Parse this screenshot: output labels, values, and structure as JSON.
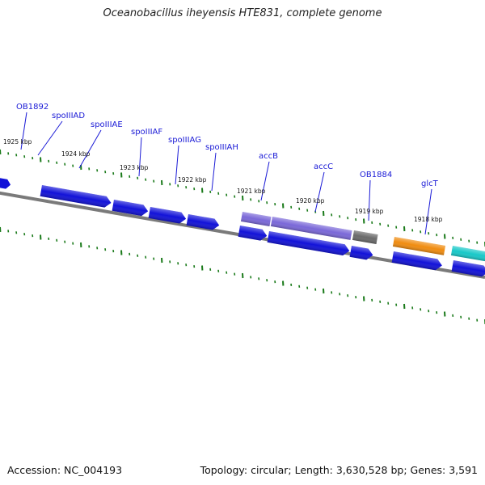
{
  "header": {
    "title": "Oceanobacillus iheyensis HTE831, complete genome"
  },
  "footer": {
    "accession": "Accession: NC_004193",
    "summary": "Topology: circular; Length: 3,630,528 bp; Genes: 3,591"
  },
  "colors": {
    "cds_forward": "#1212d8",
    "cds_lavender": "#7a68d8",
    "cds_gray": "#6a6a6a",
    "rna_orange": "#f08c10",
    "rna_cyan": "#18c8c8",
    "backbone": "#7a7a7a",
    "tick": "#1a7a1a",
    "label": "#1a1ad6"
  },
  "map": {
    "kbp_labels": [
      "1925 kbp",
      "1924 kbp",
      "1923 kbp",
      "1922 kbp",
      "1921 kbp",
      "1920 kbp",
      "1919 kbp",
      "1918 kbp"
    ],
    "gene_labels": [
      "OB1892",
      "spoIIIAD",
      "spoIIIAE",
      "spoIIIAF",
      "spoIIIAG",
      "spoIIIAH",
      "accB",
      "accC",
      "OB1884",
      "glcT"
    ]
  }
}
